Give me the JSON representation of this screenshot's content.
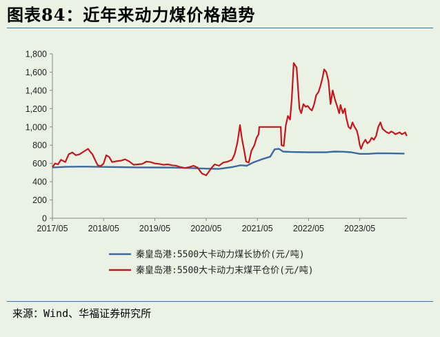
{
  "title": "图表84：近年来动力煤价格趋势",
  "source": "来源：Wind、华福证券研究所",
  "chart_data": {
    "type": "line",
    "title": "",
    "xlabel": "",
    "ylabel": "",
    "ylim": [
      0,
      1800
    ],
    "yticks": [
      "0",
      "200",
      "400",
      "600",
      "800",
      "1,000",
      "1,200",
      "1,400",
      "1,600",
      "1,800"
    ],
    "xticks": [
      "2017/05",
      "2018/05",
      "2019/05",
      "2020/05",
      "2021/05",
      "2022/05",
      "2023/05"
    ],
    "xlim": [
      "2017-05",
      "2024-04"
    ],
    "grid": false,
    "legend_position": "bottom",
    "series": [
      {
        "name": "秦皇岛港:5500大卡动力煤长协价(元/吨)",
        "color": "#3a6aa6",
        "points": [
          [
            "2017-05-01",
            555
          ],
          [
            "2017-08-01",
            563
          ],
          [
            "2017-11-01",
            565
          ],
          [
            "2018-01-01",
            565
          ],
          [
            "2018-05-01",
            562
          ],
          [
            "2018-09-01",
            560
          ],
          [
            "2019-01-01",
            557
          ],
          [
            "2019-05-01",
            556
          ],
          [
            "2019-09-01",
            554
          ],
          [
            "2020-01-01",
            550
          ],
          [
            "2020-05-01",
            543
          ],
          [
            "2020-08-01",
            540
          ],
          [
            "2020-11-01",
            560
          ],
          [
            "2021-01-01",
            580
          ],
          [
            "2021-02-15",
            575
          ],
          [
            "2021-04-01",
            610
          ],
          [
            "2021-06-01",
            645
          ],
          [
            "2021-08-01",
            675
          ],
          [
            "2021-09-01",
            755
          ],
          [
            "2021-10-01",
            760
          ],
          [
            "2021-11-01",
            730
          ],
          [
            "2022-01-01",
            725
          ],
          [
            "2022-05-01",
            722
          ],
          [
            "2022-09-01",
            722
          ],
          [
            "2022-11-01",
            730
          ],
          [
            "2023-01-01",
            728
          ],
          [
            "2023-03-01",
            722
          ],
          [
            "2023-05-01",
            705
          ],
          [
            "2023-07-01",
            705
          ],
          [
            "2023-09-01",
            712
          ],
          [
            "2023-12-01",
            710
          ],
          [
            "2024-03-15",
            708
          ]
        ]
      },
      {
        "name": "秦皇岛港:5500大卡动力末煤平仓价(元/吨)",
        "color": "#c8141c",
        "points": [
          [
            "2017-05-01",
            560
          ],
          [
            "2017-05-20",
            600
          ],
          [
            "2017-06-10",
            590
          ],
          [
            "2017-07-01",
            640
          ],
          [
            "2017-08-01",
            615
          ],
          [
            "2017-08-25",
            700
          ],
          [
            "2017-09-20",
            720
          ],
          [
            "2017-10-15",
            690
          ],
          [
            "2017-11-10",
            700
          ],
          [
            "2017-12-10",
            730
          ],
          [
            "2018-01-10",
            760
          ],
          [
            "2018-01-25",
            730
          ],
          [
            "2018-02-10",
            700
          ],
          [
            "2018-03-01",
            640
          ],
          [
            "2018-03-20",
            580
          ],
          [
            "2018-04-10",
            570
          ],
          [
            "2018-05-01",
            600
          ],
          [
            "2018-05-20",
            690
          ],
          [
            "2018-06-10",
            670
          ],
          [
            "2018-07-01",
            615
          ],
          [
            "2018-08-01",
            625
          ],
          [
            "2018-09-01",
            630
          ],
          [
            "2018-10-01",
            645
          ],
          [
            "2018-11-01",
            620
          ],
          [
            "2018-12-01",
            585
          ],
          [
            "2019-01-01",
            590
          ],
          [
            "2019-02-01",
            595
          ],
          [
            "2019-03-01",
            620
          ],
          [
            "2019-04-01",
            615
          ],
          [
            "2019-05-01",
            600
          ],
          [
            "2019-06-01",
            595
          ],
          [
            "2019-07-01",
            585
          ],
          [
            "2019-08-01",
            590
          ],
          [
            "2019-09-01",
            580
          ],
          [
            "2019-10-01",
            575
          ],
          [
            "2019-11-01",
            560
          ],
          [
            "2019-12-01",
            550
          ],
          [
            "2020-01-01",
            560
          ],
          [
            "2020-02-01",
            575
          ],
          [
            "2020-03-01",
            555
          ],
          [
            "2020-04-01",
            490
          ],
          [
            "2020-05-01",
            470
          ],
          [
            "2020-05-20",
            510
          ],
          [
            "2020-06-10",
            555
          ],
          [
            "2020-07-01",
            590
          ],
          [
            "2020-08-01",
            575
          ],
          [
            "2020-09-01",
            610
          ],
          [
            "2020-10-01",
            620
          ],
          [
            "2020-11-01",
            640
          ],
          [
            "2020-11-20",
            700
          ],
          [
            "2020-12-10",
            830
          ],
          [
            "2020-12-28",
            1020
          ],
          [
            "2021-01-10",
            880
          ],
          [
            "2021-01-25",
            760
          ],
          [
            "2021-02-10",
            620
          ],
          [
            "2021-03-01",
            610
          ],
          [
            "2021-03-20",
            740
          ],
          [
            "2021-04-10",
            800
          ],
          [
            "2021-04-25",
            880
          ],
          [
            "2021-05-10",
            920
          ],
          [
            "2021-05-15",
            1000
          ],
          [
            "2021-06-01",
            1000
          ],
          [
            "2021-08-01",
            1000
          ],
          [
            "2021-09-01",
            1000
          ],
          [
            "2021-10-15",
            1000
          ],
          [
            "2021-10-20",
            800
          ],
          [
            "2021-11-05",
            790
          ],
          [
            "2021-11-20",
            1020
          ],
          [
            "2021-12-05",
            1120
          ],
          [
            "2021-12-20",
            1080
          ],
          [
            "2022-01-01",
            1300
          ],
          [
            "2022-01-15",
            1700
          ],
          [
            "2022-02-05",
            1650
          ],
          [
            "2022-02-25",
            1200
          ],
          [
            "2022-03-10",
            1150
          ],
          [
            "2022-03-25",
            1250
          ],
          [
            "2022-04-10",
            1220
          ],
          [
            "2022-04-25",
            1230
          ],
          [
            "2022-05-10",
            1200
          ],
          [
            "2022-05-25",
            1180
          ],
          [
            "2022-06-10",
            1250
          ],
          [
            "2022-06-25",
            1350
          ],
          [
            "2022-07-10",
            1380
          ],
          [
            "2022-07-25",
            1450
          ],
          [
            "2022-08-10",
            1550
          ],
          [
            "2022-08-20",
            1630
          ],
          [
            "2022-09-05",
            1600
          ],
          [
            "2022-09-20",
            1500
          ],
          [
            "2022-10-05",
            1250
          ],
          [
            "2022-10-20",
            1400
          ],
          [
            "2022-11-05",
            1300
          ],
          [
            "2022-11-20",
            1230
          ],
          [
            "2022-12-05",
            1150
          ],
          [
            "2022-12-15",
            1240
          ],
          [
            "2023-01-01",
            1150
          ],
          [
            "2023-01-15",
            1200
          ],
          [
            "2023-01-25",
            1100
          ],
          [
            "2023-02-10",
            1000
          ],
          [
            "2023-02-25",
            980
          ],
          [
            "2023-03-10",
            1050
          ],
          [
            "2023-03-25",
            1000
          ],
          [
            "2023-04-10",
            960
          ],
          [
            "2023-04-20",
            900
          ],
          [
            "2023-05-01",
            800
          ],
          [
            "2023-05-10",
            760
          ],
          [
            "2023-05-25",
            820
          ],
          [
            "2023-06-10",
            860
          ],
          [
            "2023-06-25",
            820
          ],
          [
            "2023-07-10",
            840
          ],
          [
            "2023-07-25",
            880
          ],
          [
            "2023-08-10",
            860
          ],
          [
            "2023-08-25",
            900
          ],
          [
            "2023-09-10",
            1000
          ],
          [
            "2023-09-25",
            1050
          ],
          [
            "2023-10-10",
            980
          ],
          [
            "2023-10-25",
            960
          ],
          [
            "2023-11-10",
            940
          ],
          [
            "2023-11-25",
            930
          ],
          [
            "2023-12-10",
            950
          ],
          [
            "2023-12-25",
            940
          ],
          [
            "2024-01-10",
            920
          ],
          [
            "2024-01-25",
            930
          ],
          [
            "2024-02-10",
            940
          ],
          [
            "2024-02-25",
            920
          ],
          [
            "2024-03-10",
            930
          ],
          [
            "2024-03-20",
            940
          ],
          [
            "2024-03-31",
            900
          ]
        ]
      }
    ]
  }
}
